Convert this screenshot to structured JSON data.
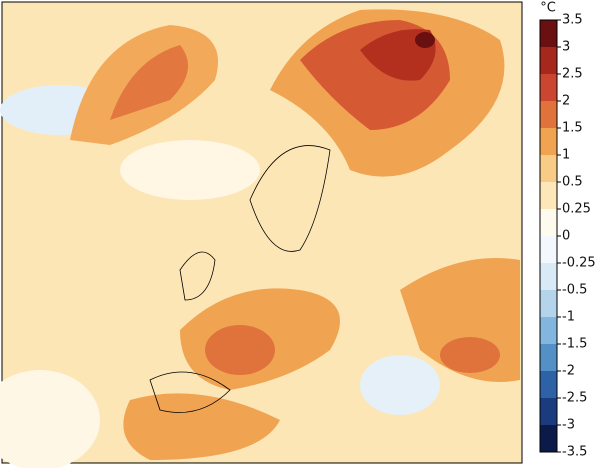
{
  "colorbar": {
    "unit": "°C",
    "ticks": [
      3.5,
      3,
      2.5,
      2,
      1.5,
      1,
      0.5,
      0.25,
      0,
      -0.25,
      -0.5,
      -1,
      -1.5,
      -2,
      -2.5,
      -3,
      -3.5
    ],
    "colors": [
      "#6a1010",
      "#a6281d",
      "#cb4630",
      "#e0733c",
      "#f0a452",
      "#f8cc86",
      "#fde7b8",
      "#fffaee",
      "#f2f8fd",
      "#d9e9f5",
      "#b4d4ec",
      "#82b6de",
      "#5290c6",
      "#2e62a6",
      "#1a3b7e",
      "#0b1a48"
    ]
  }
}
